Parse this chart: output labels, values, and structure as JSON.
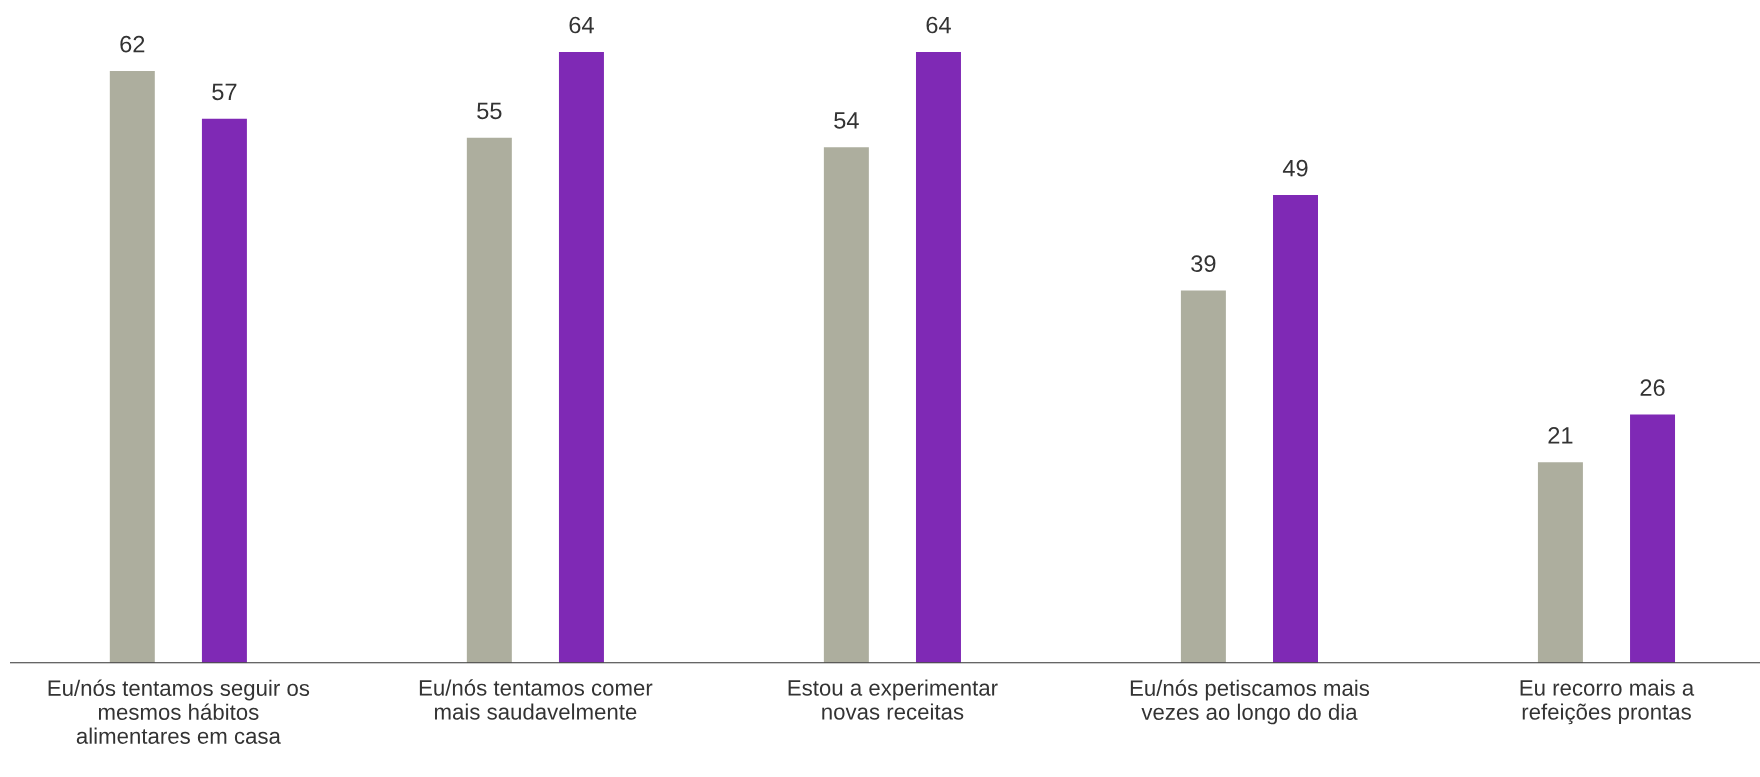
{
  "chart_data": {
    "type": "bar",
    "categories": [
      "Eu/nós tentamos seguir os\nmesmos hábitos\nalimentares em casa",
      "Eu/nós tentamos comer\nmais saudavelmente",
      "Estou a experimentar\nnovas receitas",
      "Eu/nós petiscamos mais\nvezes ao longo do dia",
      "Eu recorro mais a\nrefeições prontas"
    ],
    "series": [
      {
        "color": "#adae9e",
        "values": [
          62,
          55,
          54,
          39,
          21
        ]
      },
      {
        "color": "#7f29b5",
        "values": [
          57,
          64,
          64,
          49,
          26
        ]
      }
    ],
    "data_labels": true,
    "grid": false
  }
}
